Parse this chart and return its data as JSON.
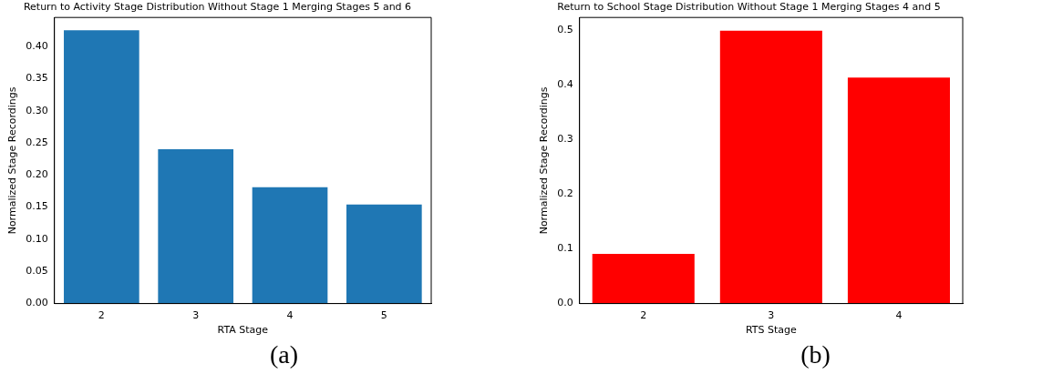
{
  "chart_data": [
    {
      "type": "bar",
      "title": "Return to Activity Stage Distribution Without Stage 1 Merging Stages 5 and 6",
      "xlabel": "RTA Stage",
      "ylabel": "Normalized Stage Recordings",
      "categories": [
        "2",
        "3",
        "4",
        "5"
      ],
      "values": [
        0.425,
        0.24,
        0.181,
        0.154
      ],
      "color": "#1f77b4",
      "ylim": [
        0,
        0.445
      ],
      "yticks": [
        {
          "value": 0,
          "label": "0.00"
        },
        {
          "value": 0.05,
          "label": "0.05"
        },
        {
          "value": 0.1,
          "label": "0.10"
        },
        {
          "value": 0.15,
          "label": "0.15"
        },
        {
          "value": 0.2,
          "label": "0.20"
        },
        {
          "value": 0.25,
          "label": "0.25"
        },
        {
          "value": 0.3,
          "label": "0.30"
        },
        {
          "value": 0.35,
          "label": "0.35"
        },
        {
          "value": 0.4,
          "label": "0.40"
        }
      ],
      "grid": false,
      "legend": false,
      "annotations": [
        "(a)"
      ]
    },
    {
      "type": "bar",
      "title": "Return to School Stage Distribution Without Stage 1 Merging Stages 4 and 5",
      "xlabel": "RTS Stage",
      "ylabel": "Normalized Stage Recordings",
      "categories": [
        "2",
        "3",
        "4"
      ],
      "values": [
        0.091,
        0.499,
        0.413
      ],
      "color": "#ff0000",
      "ylim": [
        0,
        0.523
      ],
      "yticks": [
        {
          "value": 0,
          "label": "0.0"
        },
        {
          "value": 0.1,
          "label": "0.1"
        },
        {
          "value": 0.2,
          "label": "0.2"
        },
        {
          "value": 0.3,
          "label": "0.3"
        },
        {
          "value": 0.4,
          "label": "0.4"
        },
        {
          "value": 0.5,
          "label": "0.5"
        }
      ],
      "grid": false,
      "legend": false,
      "annotations": [
        "(b)"
      ]
    }
  ]
}
